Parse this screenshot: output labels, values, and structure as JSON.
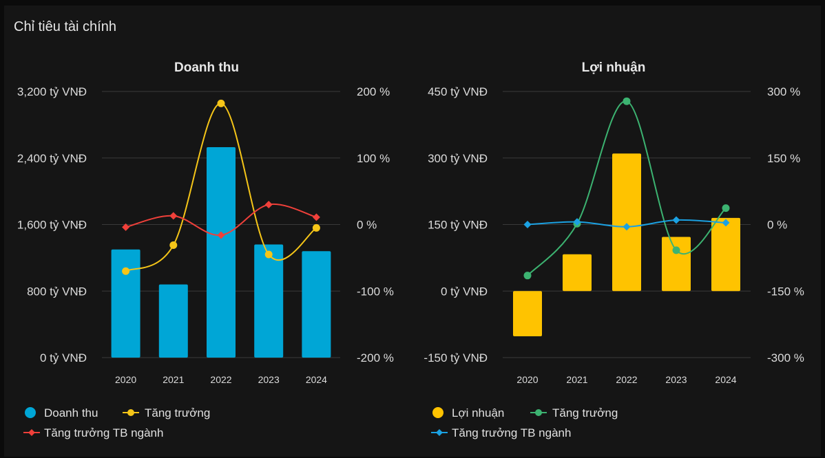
{
  "header": {
    "title": "Chỉ tiêu tài chính"
  },
  "colors": {
    "revenue_bar": "#00a6d6",
    "revenue_growth": "#f5c518",
    "revenue_industry": "#f0403a",
    "profit_bar": "#ffc300",
    "profit_growth": "#3cb371",
    "profit_industry": "#1ba1e2",
    "grid": "#3a3a3a"
  },
  "chart_data": [
    {
      "type": "bar",
      "title": "Doanh thu",
      "categories": [
        "2020",
        "2021",
        "2022",
        "2023",
        "2024"
      ],
      "left_axis": {
        "ticks": [
          "0 tỷ VNĐ",
          "800 tỷ VNĐ",
          "1,600 tỷ VNĐ",
          "2,400 tỷ VNĐ",
          "3,200 tỷ VNĐ"
        ],
        "ylim": [
          0,
          3200
        ],
        "unit": "tỷ VNĐ"
      },
      "right_axis": {
        "ticks": [
          "-200 %",
          "-100 %",
          "0 %",
          "100 %",
          "200 %"
        ],
        "ylim": [
          -200,
          200
        ],
        "unit": "%"
      },
      "series": [
        {
          "name": "Doanh thu",
          "kind": "bar",
          "axis": "left",
          "values": [
            1300,
            880,
            2530,
            1360,
            1280
          ]
        },
        {
          "name": "Tăng trưởng",
          "kind": "line",
          "axis": "right",
          "values": [
            -70,
            -31,
            182,
            -45,
            -5
          ]
        },
        {
          "name": "Tăng trưởng TB ngành",
          "kind": "line",
          "axis": "right",
          "values": [
            -4,
            13,
            -16,
            30,
            11
          ]
        }
      ],
      "legend": [
        "Doanh thu",
        "Tăng trưởng",
        "Tăng trưởng TB ngành"
      ]
    },
    {
      "type": "bar",
      "title": "Lợi nhuận",
      "categories": [
        "2020",
        "2021",
        "2022",
        "2023",
        "2024"
      ],
      "left_axis": {
        "ticks": [
          "-150 tỷ VNĐ",
          "0 tỷ VNĐ",
          "150 tỷ VNĐ",
          "300 tỷ VNĐ",
          "450 tỷ VNĐ"
        ],
        "ylim": [
          -150,
          450
        ],
        "unit": "tỷ VNĐ"
      },
      "right_axis": {
        "ticks": [
          "-300 %",
          "-150 %",
          "0 %",
          "150 %",
          "300 %"
        ],
        "ylim": [
          -300,
          300
        ],
        "unit": "%"
      },
      "series": [
        {
          "name": "Lợi nhuận",
          "kind": "bar",
          "axis": "left",
          "values": [
            -102,
            83,
            310,
            122,
            165
          ]
        },
        {
          "name": "Tăng trưởng",
          "kind": "line",
          "axis": "right",
          "values": [
            -115,
            2,
            278,
            -58,
            37
          ]
        },
        {
          "name": "Tăng trưởng TB ngành",
          "kind": "line",
          "axis": "right",
          "values": [
            0,
            6,
            -5,
            10,
            4
          ]
        }
      ],
      "legend": [
        "Lợi nhuận",
        "Tăng trưởng",
        "Tăng trưởng TB ngành"
      ]
    }
  ]
}
